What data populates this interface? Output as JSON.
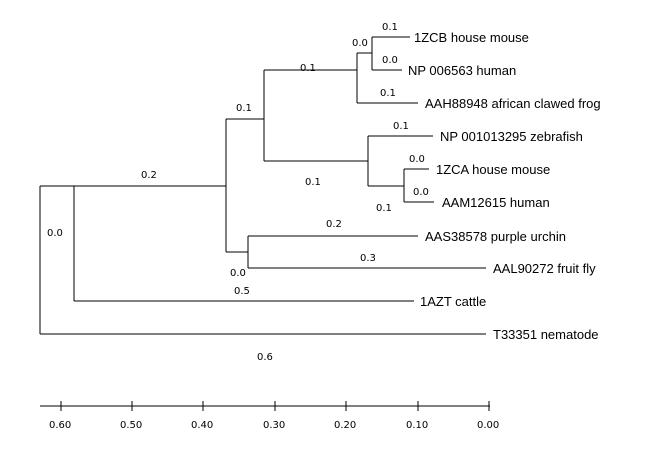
{
  "tree": {
    "leaves": [
      "1ZCB house mouse",
      "NP 006563 human",
      "AAH88948 african clawed frog",
      "NP 001013295 zebrafish",
      "1ZCA house mouse",
      "AAM12615 human",
      "AAS38578 purple urchin",
      "AAL90272 fruit fly",
      "1AZT cattle",
      "T33351 nematode"
    ],
    "branch_lengths": [
      "0.1",
      "0.0",
      "0.0",
      "0.1",
      "0.1",
      "0.1",
      "0.1",
      "0.0",
      "0.0",
      "0.1",
      "0.1",
      "0.2",
      "0.3",
      "0.0",
      "0.2",
      "0.5",
      "0.0",
      "0.6"
    ]
  },
  "axis": {
    "ticks": [
      "0.60",
      "0.50",
      "0.40",
      "0.30",
      "0.20",
      "0.10",
      "0.00"
    ]
  }
}
